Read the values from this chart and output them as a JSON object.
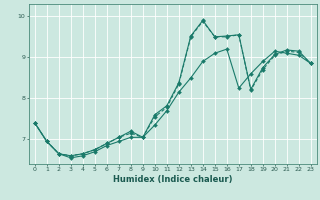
{
  "title": "",
  "xlabel": "Humidex (Indice chaleur)",
  "background_color": "#cce8e0",
  "grid_color": "#ffffff",
  "line_color": "#1a7a6a",
  "xlim": [
    -0.5,
    23.5
  ],
  "ylim": [
    6.4,
    10.3
  ],
  "yticks": [
    7,
    8,
    9,
    10
  ],
  "xticks": [
    0,
    1,
    2,
    3,
    4,
    5,
    6,
    7,
    8,
    9,
    10,
    11,
    12,
    13,
    14,
    15,
    16,
    17,
    18,
    19,
    20,
    21,
    22,
    23
  ],
  "line1_x": [
    0,
    1,
    2,
    3,
    4,
    5,
    6,
    7,
    8,
    9,
    10,
    11,
    12,
    13,
    14,
    15,
    16,
    17,
    18,
    19,
    20,
    21,
    22,
    23
  ],
  "line1_y": [
    7.4,
    6.95,
    6.65,
    6.55,
    6.6,
    6.7,
    6.85,
    6.95,
    7.05,
    7.05,
    7.35,
    7.7,
    8.15,
    8.5,
    8.9,
    9.1,
    9.2,
    8.25,
    8.6,
    8.9,
    9.15,
    9.1,
    9.05,
    8.85
  ],
  "line2_x": [
    0,
    1,
    2,
    3,
    4,
    5,
    6,
    7,
    8,
    9,
    10,
    11,
    12,
    13,
    14,
    15,
    16,
    17,
    18,
    19,
    20,
    21,
    22,
    23
  ],
  "line2_y": [
    7.4,
    6.95,
    6.65,
    6.6,
    6.65,
    6.75,
    6.9,
    7.05,
    7.15,
    7.05,
    7.55,
    7.78,
    8.35,
    9.5,
    9.88,
    9.5,
    9.5,
    9.55,
    8.2,
    8.7,
    9.05,
    9.15,
    9.12,
    8.85
  ],
  "line3_x": [
    0,
    1,
    2,
    3,
    4,
    5,
    6,
    7,
    8,
    9,
    10,
    11,
    12,
    13,
    14,
    15,
    16,
    17,
    18,
    19,
    20,
    21,
    22,
    23
  ],
  "line3_y": [
    7.4,
    6.95,
    6.65,
    6.6,
    6.65,
    6.75,
    6.9,
    7.05,
    7.2,
    7.05,
    7.6,
    7.82,
    8.38,
    9.52,
    9.9,
    9.5,
    9.52,
    9.55,
    8.22,
    8.75,
    9.07,
    9.18,
    9.15,
    8.85
  ],
  "tick_labelsize": 4.5,
  "xlabel_fontsize": 6.0,
  "linewidth": 0.8,
  "markersize": 2.0
}
